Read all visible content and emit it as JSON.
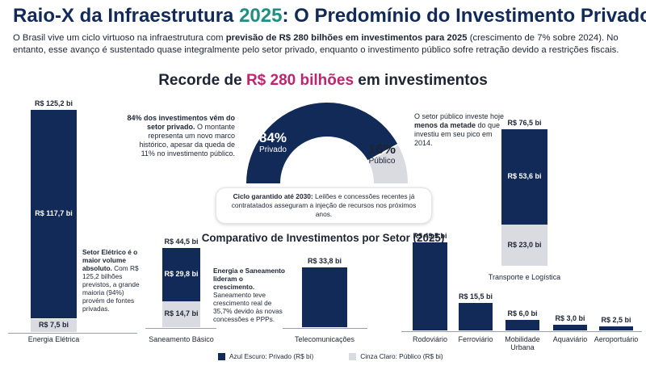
{
  "header": {
    "title_part1": "Raio-X da Infraestrutura ",
    "title_year": "2025",
    "title_part2": ": O Predomínio do Investimento Privado",
    "intro_a": "O Brasil vive um ciclo virtuoso na infraestrutura com ",
    "intro_b": "previsão de R$ 280 bilhões em investimentos para 2025",
    "intro_c": " (crescimento de 7% sobre 2024). No entanto, esse avanço é sustentado quase integralmente pelo setor privado, enquanto o investimento público sofre retração devido a restrições fiscais."
  },
  "record": {
    "title_a": "Recorde de ",
    "title_b": "R$ 280 bilhões",
    "title_c": " em investimentos",
    "left_note_b": "84% dos investimentos vêm do setor privado.",
    "left_note": " O montante representa um novo marco histórico, apesar da queda de 11% no investimento público.",
    "right_note_a": "O setor público investe hoje ",
    "right_note_b": "menos da metade",
    "right_note_c": " do que investiu em seu pico em 2014.",
    "callout_b": "Ciclo garantido até 2030:",
    "callout": " Leilões e concessões recentes já contratatados asseguram a injeção de recursos nos próximos anos."
  },
  "gauge": {
    "private_pct": "84%",
    "private_label": "Privado",
    "private_value": 84,
    "public_pct": "16%",
    "public_label": "Público",
    "public_value": 16
  },
  "notes": {
    "energia_b": "Setor Elétrico é o maior volume absoluto.",
    "energia": " Com R$ 125,2 bilhões previstos, a grande maioria (94%) provém de fontes privadas.",
    "saneamento_b": "Energia e Saneamento lideram o crescimento.",
    "saneamento": " Saneamento teve crescimento real de 35,7% devido às novas concessões e PPPs."
  },
  "chart_data": {
    "type": "bar",
    "title": "Comparativo de Investimentos por Setor (2025)",
    "categories": [
      "Energia Elétrica",
      "Saneamento Básico",
      "Telecomunicações",
      "Rodoviário",
      "Ferroviário",
      "Mobilidade Urbana",
      "Aquaviário",
      "Aeroportuário",
      "Transporte e Logística"
    ],
    "totals": [
      125.2,
      44.5,
      33.8,
      49.5,
      15.5,
      6.0,
      3.0,
      2.5,
      76.5
    ],
    "series": [
      {
        "name": "Azul Escuro: Privado (R$ bi)",
        "values": [
          117.7,
          29.8,
          null,
          null,
          null,
          null,
          null,
          null,
          53.6
        ]
      },
      {
        "name": "Cinza Claro: Público (R$ bi)",
        "values": [
          7.5,
          14.7,
          null,
          null,
          null,
          null,
          null,
          null,
          23.0
        ]
      }
    ],
    "labels": {
      "totals": [
        "R$ 125,2 bi",
        "R$ 44,5 bi",
        "R$ 33,8 bi",
        "R$ 49,5 bi",
        "R$ 15,5 bi",
        "R$ 6,0 bi",
        "R$ 3,0 bi",
        "R$ 2,5 bi",
        "R$ 76,5 bi"
      ],
      "private": [
        "R$ 117,7 bi",
        "R$ 29,8 bi",
        "",
        "",
        "",
        "",
        "",
        "",
        "R$ 53,6 bi"
      ],
      "public": [
        "R$ 7,5 bi",
        "R$ 14,7 bi",
        "",
        "",
        "",
        "",
        "",
        "",
        "R$ 23,0 bi"
      ]
    },
    "legend": {
      "private": "Azul Escuro: Privado (R$ bi)",
      "public": "Cinza Claro: Público (R$ bi)"
    },
    "legend_position": "bottom",
    "colors": {
      "private": "#112a57",
      "public": "#d9dbe0",
      "accent": "#1f8f82",
      "highlight": "#c0246e"
    }
  }
}
